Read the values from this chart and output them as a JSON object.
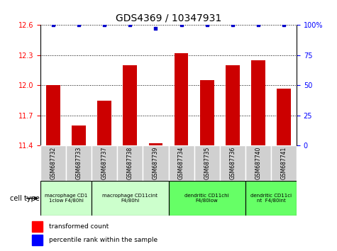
{
  "title": "GDS4369 / 10347931",
  "samples": [
    "GSM687732",
    "GSM687733",
    "GSM687737",
    "GSM687738",
    "GSM687739",
    "GSM687734",
    "GSM687735",
    "GSM687736",
    "GSM687740",
    "GSM687741"
  ],
  "red_values": [
    12.0,
    11.6,
    11.85,
    12.2,
    11.42,
    12.32,
    12.05,
    12.2,
    12.25,
    11.97
  ],
  "blue_values": [
    100,
    100,
    100,
    100,
    97,
    100,
    100,
    100,
    100,
    100
  ],
  "ylim_left": [
    11.4,
    12.6
  ],
  "ylim_right": [
    0,
    100
  ],
  "yticks_left": [
    11.4,
    11.7,
    12.0,
    12.3,
    12.6
  ],
  "yticks_right": [
    0,
    25,
    50,
    75,
    100
  ],
  "cell_groups": [
    {
      "label": "macrophage CD1\n1clow F4/80hi",
      "start": 0,
      "end": 2,
      "color": "#ccffcc"
    },
    {
      "label": "macrophage CD11cint\nF4/80hi",
      "start": 2,
      "end": 5,
      "color": "#ccffcc"
    },
    {
      "label": "dendritic CD11chi\nF4/80low",
      "start": 5,
      "end": 8,
      "color": "#66ff66"
    },
    {
      "label": "dendritic CD11ci\nnt  F4/80int",
      "start": 8,
      "end": 10,
      "color": "#66ff66"
    }
  ],
  "bar_color": "#cc0000",
  "dot_color": "#0000cc",
  "background_color": "#ffffff",
  "tick_area_color": "#d0d0d0",
  "legend_red_label": "transformed count",
  "legend_blue_label": "percentile rank within the sample",
  "cell_type_label": "cell type"
}
